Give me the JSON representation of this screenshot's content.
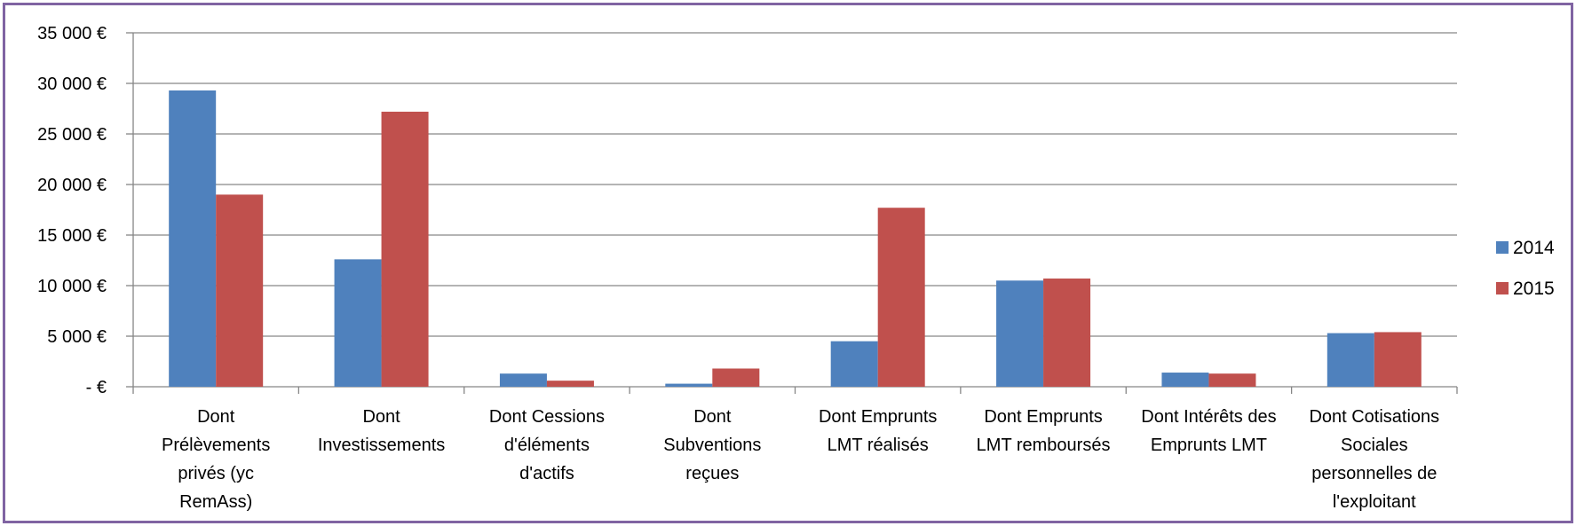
{
  "chart_data": {
    "type": "bar",
    "title": "",
    "xlabel": "",
    "ylabel": "",
    "categories": [
      "Dont Prélèvements privés (yc RemAss)",
      "Dont Investissements",
      "Dont Cessions d'éléments d'actifs",
      "Dont Subventions reçues",
      "Dont Emprunts LMT réalisés",
      "Dont Emprunts LMT remboursés",
      "Dont Intérêts des Emprunts LMT",
      "Dont Cotisations Sociales personnelles de l'exploitant"
    ],
    "category_lines": [
      [
        "Dont",
        "Prélèvements",
        "privés (yc",
        "RemAss)"
      ],
      [
        "Dont",
        "Investissements"
      ],
      [
        "Dont Cessions",
        "d'éléments",
        "d'actifs"
      ],
      [
        "Dont",
        "Subventions",
        "reçues"
      ],
      [
        "Dont Emprunts",
        "LMT réalisés"
      ],
      [
        "Dont Emprunts",
        "LMT remboursés"
      ],
      [
        "Dont Intérêts des",
        "Emprunts LMT"
      ],
      [
        "Dont Cotisations",
        "Sociales",
        "personnelles de",
        "l'exploitant"
      ]
    ],
    "series": [
      {
        "name": "2014",
        "color": "#4F81BD",
        "values": [
          29300,
          12600,
          1300,
          300,
          4500,
          10500,
          1400,
          5300
        ]
      },
      {
        "name": "2015",
        "color": "#C0504D",
        "values": [
          19000,
          27200,
          600,
          1800,
          17700,
          10700,
          1300,
          5400
        ]
      }
    ],
    "ylim": [
      0,
      35000
    ],
    "yticks": [
      0,
      5000,
      10000,
      15000,
      20000,
      25000,
      30000,
      35000
    ],
    "ytick_labels": [
      "-  €",
      "5 000 €",
      "10 000 €",
      "15 000 €",
      "20 000 €",
      "25 000 €",
      "30 000 €",
      "35 000 €"
    ],
    "grid": true,
    "legend_position": "right"
  },
  "colors": {
    "frame_border": "#8064A2",
    "gridline": "#868686",
    "axis": "#868686"
  }
}
